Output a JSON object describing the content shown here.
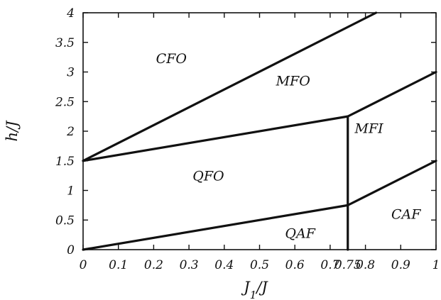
{
  "chart_data": {
    "type": "line",
    "xlabel": "J_1/J",
    "ylabel": "h/J",
    "xlim": [
      0,
      1
    ],
    "ylim": [
      0,
      4
    ],
    "grid": false,
    "x_ticks": [
      {
        "value": 0,
        "label": "0"
      },
      {
        "value": 0.1,
        "label": "0.1"
      },
      {
        "value": 0.2,
        "label": "0.2"
      },
      {
        "value": 0.3,
        "label": "0.3"
      },
      {
        "value": 0.4,
        "label": "0.4"
      },
      {
        "value": 0.5,
        "label": "0.5"
      },
      {
        "value": 0.6,
        "label": "0.6"
      },
      {
        "value": 0.7,
        "label": "0.7"
      },
      {
        "value": 0.75,
        "label": "0.75"
      },
      {
        "value": 0.8,
        "label": "0.8"
      },
      {
        "value": 0.9,
        "label": "0.9"
      },
      {
        "value": 1,
        "label": "1"
      }
    ],
    "y_ticks": [
      {
        "value": 0,
        "label": "0"
      },
      {
        "value": 0.5,
        "label": "0.5"
      },
      {
        "value": 1,
        "label": "1"
      },
      {
        "value": 1.5,
        "label": "1.5"
      },
      {
        "value": 2,
        "label": "2"
      },
      {
        "value": 2.5,
        "label": "2.5"
      },
      {
        "value": 3,
        "label": "3"
      },
      {
        "value": 3.5,
        "label": "3.5"
      },
      {
        "value": 4,
        "label": "4"
      }
    ],
    "series": [
      {
        "points": [
          [
            0,
            1.5
          ],
          [
            0.83,
            4
          ]
        ]
      },
      {
        "points": [
          [
            0,
            1.5
          ],
          [
            0.75,
            2.25
          ],
          [
            1,
            3
          ]
        ]
      },
      {
        "points": [
          [
            0,
            0
          ],
          [
            0.75,
            0.75
          ],
          [
            1,
            1.5
          ]
        ]
      },
      {
        "points": [
          [
            0.75,
            0
          ],
          [
            0.75,
            2.25
          ]
        ]
      }
    ],
    "region_labels": [
      {
        "text": "CFO",
        "x": 0.25,
        "y": 3.15
      },
      {
        "text": "MFO",
        "x": 0.595,
        "y": 2.77
      },
      {
        "text": "MFI",
        "x": 0.81,
        "y": 1.97
      },
      {
        "text": "QFO",
        "x": 0.355,
        "y": 1.17
      },
      {
        "text": "QAF",
        "x": 0.615,
        "y": 0.2
      },
      {
        "text": "CAF",
        "x": 0.915,
        "y": 0.52
      }
    ]
  }
}
